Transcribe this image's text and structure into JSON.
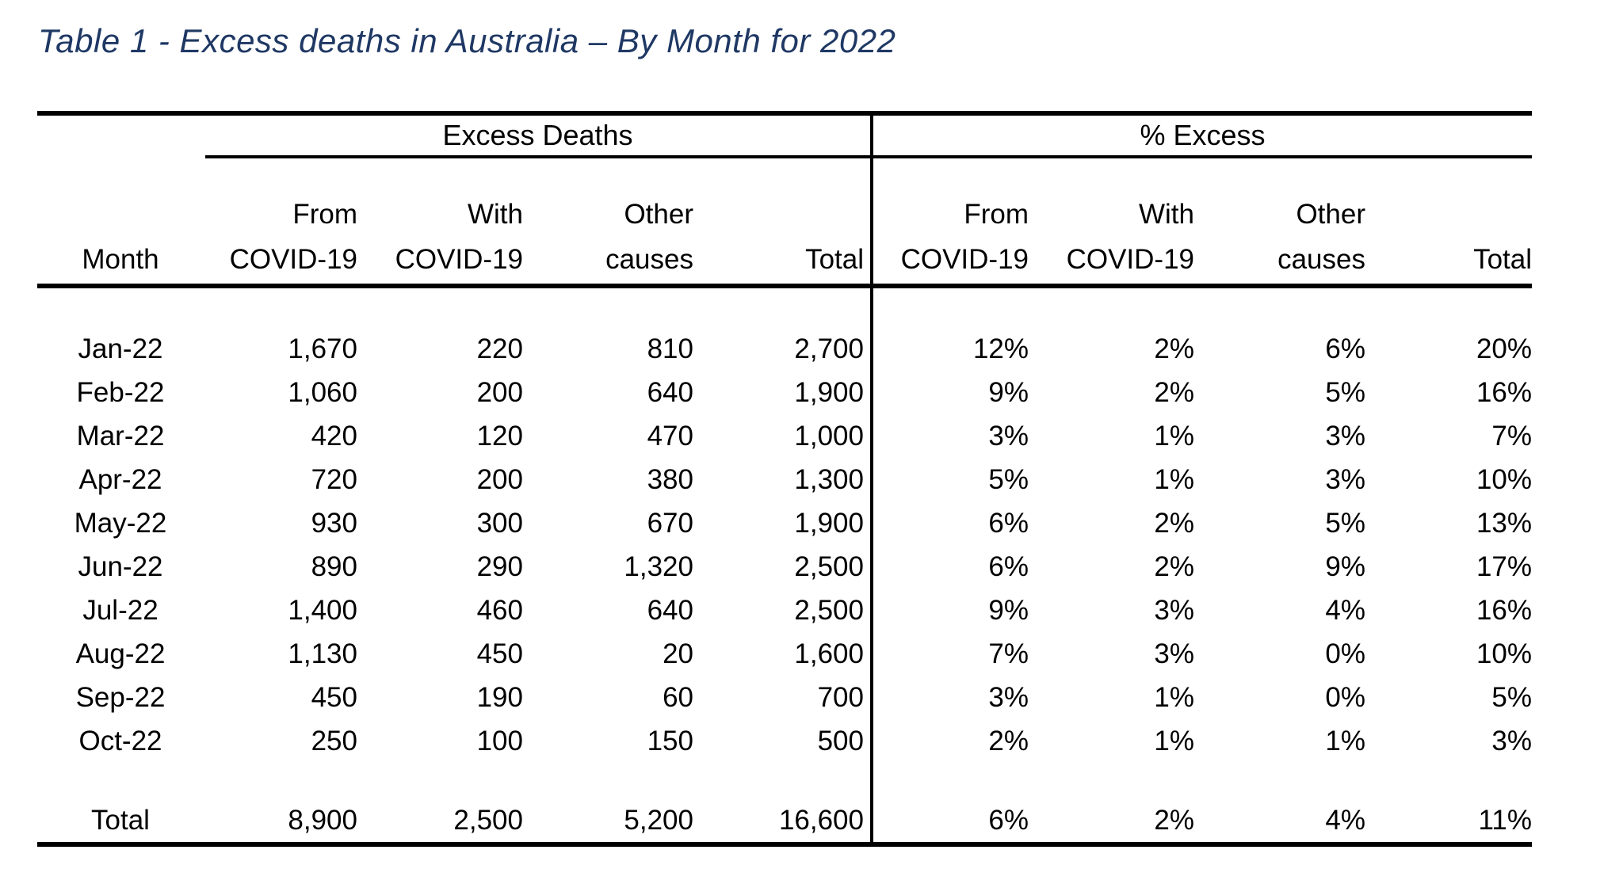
{
  "title": {
    "text": "Table 1 - Excess deaths in Australia – By Month for 2022",
    "color": "#1f3864"
  },
  "table": {
    "group_headers": [
      {
        "label": "Excess Deaths"
      },
      {
        "label": "% Excess"
      }
    ],
    "columns": [
      {
        "line1": "",
        "line2": "Month"
      },
      {
        "line1": "From",
        "line2": "COVID-19"
      },
      {
        "line1": "With",
        "line2": "COVID-19"
      },
      {
        "line1": "Other",
        "line2": "causes"
      },
      {
        "line1": "",
        "line2": "Total"
      },
      {
        "line1": "From",
        "line2": "COVID-19"
      },
      {
        "line1": "With",
        "line2": "COVID-19"
      },
      {
        "line1": "Other",
        "line2": "causes"
      },
      {
        "line1": "",
        "line2": "Total"
      }
    ],
    "rows": [
      {
        "month": "Jan-22",
        "values": [
          "1,670",
          "220",
          "810",
          "2,700",
          "12%",
          "2%",
          "6%",
          "20%"
        ]
      },
      {
        "month": "Feb-22",
        "values": [
          "1,060",
          "200",
          "640",
          "1,900",
          "9%",
          "2%",
          "5%",
          "16%"
        ]
      },
      {
        "month": "Mar-22",
        "values": [
          "420",
          "120",
          "470",
          "1,000",
          "3%",
          "1%",
          "3%",
          "7%"
        ]
      },
      {
        "month": "Apr-22",
        "values": [
          "720",
          "200",
          "380",
          "1,300",
          "5%",
          "1%",
          "3%",
          "10%"
        ]
      },
      {
        "month": "May-22",
        "values": [
          "930",
          "300",
          "670",
          "1,900",
          "6%",
          "2%",
          "5%",
          "13%"
        ]
      },
      {
        "month": "Jun-22",
        "values": [
          "890",
          "290",
          "1,320",
          "2,500",
          "6%",
          "2%",
          "9%",
          "17%"
        ]
      },
      {
        "month": "Jul-22",
        "values": [
          "1,400",
          "460",
          "640",
          "2,500",
          "9%",
          "3%",
          "4%",
          "16%"
        ]
      },
      {
        "month": "Aug-22",
        "values": [
          "1,130",
          "450",
          "20",
          "1,600",
          "7%",
          "3%",
          "0%",
          "10%"
        ]
      },
      {
        "month": "Sep-22",
        "values": [
          "450",
          "190",
          "60",
          "700",
          "3%",
          "1%",
          "0%",
          "5%"
        ]
      },
      {
        "month": "Oct-22",
        "values": [
          "250",
          "100",
          "150",
          "500",
          "2%",
          "1%",
          "1%",
          "3%"
        ]
      }
    ],
    "total_row": {
      "month": "Total",
      "values": [
        "8,900",
        "2,500",
        "5,200",
        "16,600",
        "6%",
        "2%",
        "4%",
        "11%"
      ]
    }
  }
}
